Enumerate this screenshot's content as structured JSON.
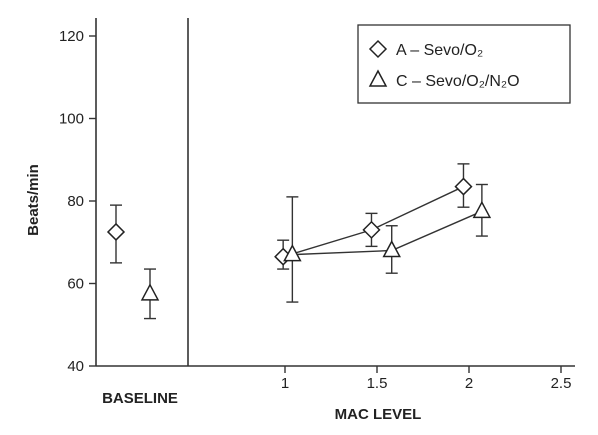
{
  "chart_data": {
    "type": "scatter",
    "title": "",
    "ylabel": "Beats/min",
    "xlabel": "MAC LEVEL",
    "baseline_label": "BASELINE",
    "ylim": [
      40,
      124
    ],
    "xlim": [
      0.5,
      2.5
    ],
    "y_ticks": [
      40,
      60,
      80,
      100,
      120
    ],
    "x_ticks": [
      1,
      1.5,
      2,
      2.5
    ],
    "y_tick_labels": [
      "40",
      "60",
      "80",
      "100",
      "120"
    ],
    "x_tick_labels": [
      "1",
      "1.5",
      "2",
      "2.5"
    ],
    "grid": false,
    "legend_position": "top-right",
    "series": [
      {
        "name": "A – Sevo/O₂",
        "marker": "diamond",
        "baseline": {
          "y": 72.5,
          "low": 65,
          "high": 79
        },
        "points": [
          {
            "x": 0.99,
            "y": 66.5,
            "low": 63.5,
            "high": 70.5
          },
          {
            "x": 1.47,
            "y": 73,
            "low": 69,
            "high": 77
          },
          {
            "x": 1.97,
            "y": 83.5,
            "low": 78.5,
            "high": 89
          }
        ]
      },
      {
        "name": "C – Sevo/O₂/N₂O",
        "marker": "triangle",
        "baseline": {
          "y": 57.5,
          "low": 51.5,
          "high": 63.5
        },
        "points": [
          {
            "x": 1.04,
            "y": 67,
            "low": 55.5,
            "high": 81
          },
          {
            "x": 1.58,
            "y": 68,
            "low": 62.5,
            "high": 74
          },
          {
            "x": 2.07,
            "y": 77.5,
            "low": 71.5,
            "high": 84
          }
        ]
      }
    ]
  }
}
